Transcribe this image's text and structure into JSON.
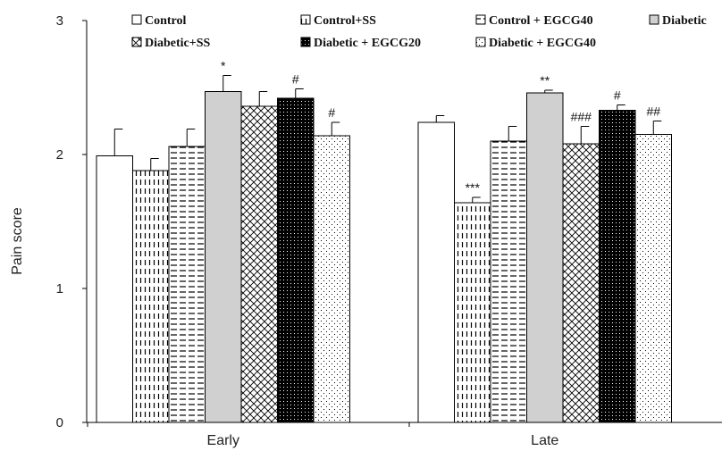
{
  "chart_data": {
    "type": "bar",
    "ylabel": "Pain score",
    "xlabel": "",
    "ylim": [
      0,
      3
    ],
    "yticks": [
      "0",
      "1",
      "2",
      "3"
    ],
    "categories": [
      "Early",
      "Late"
    ],
    "grid": false,
    "legend_position": "top",
    "series": [
      {
        "name": "Control",
        "pattern": "blank",
        "values": [
          1.99,
          2.24
        ],
        "errors": [
          0.2,
          0.05
        ],
        "annotations": [
          "",
          ""
        ]
      },
      {
        "name": "Control+SS",
        "pattern": "vertical-dash",
        "values": [
          1.88,
          1.64
        ],
        "errors": [
          0.09,
          0.04
        ],
        "annotations": [
          "",
          "***"
        ]
      },
      {
        "name": "Control + EGCG40",
        "pattern": "horizontal-dash",
        "values": [
          2.06,
          2.1
        ],
        "errors": [
          0.13,
          0.11
        ],
        "annotations": [
          "",
          ""
        ]
      },
      {
        "name": "Diabetic",
        "pattern": "gray",
        "values": [
          2.47,
          2.46
        ],
        "errors": [
          0.12,
          0.02
        ],
        "annotations": [
          "*",
          "**"
        ]
      },
      {
        "name": "Diabetic+SS",
        "pattern": "crosshatch",
        "values": [
          2.36,
          2.08
        ],
        "errors": [
          0.11,
          0.13
        ],
        "annotations": [
          "",
          "###"
        ]
      },
      {
        "name": "Diabetic + EGCG20",
        "pattern": "black-dots",
        "values": [
          2.42,
          2.33
        ],
        "errors": [
          0.07,
          0.04
        ],
        "annotations": [
          "#",
          "#"
        ]
      },
      {
        "name": "Diabetic + EGCG40",
        "pattern": "sparse-dots",
        "values": [
          2.14,
          2.15
        ],
        "errors": [
          0.1,
          0.1
        ],
        "annotations": [
          "#",
          "##"
        ]
      }
    ]
  }
}
